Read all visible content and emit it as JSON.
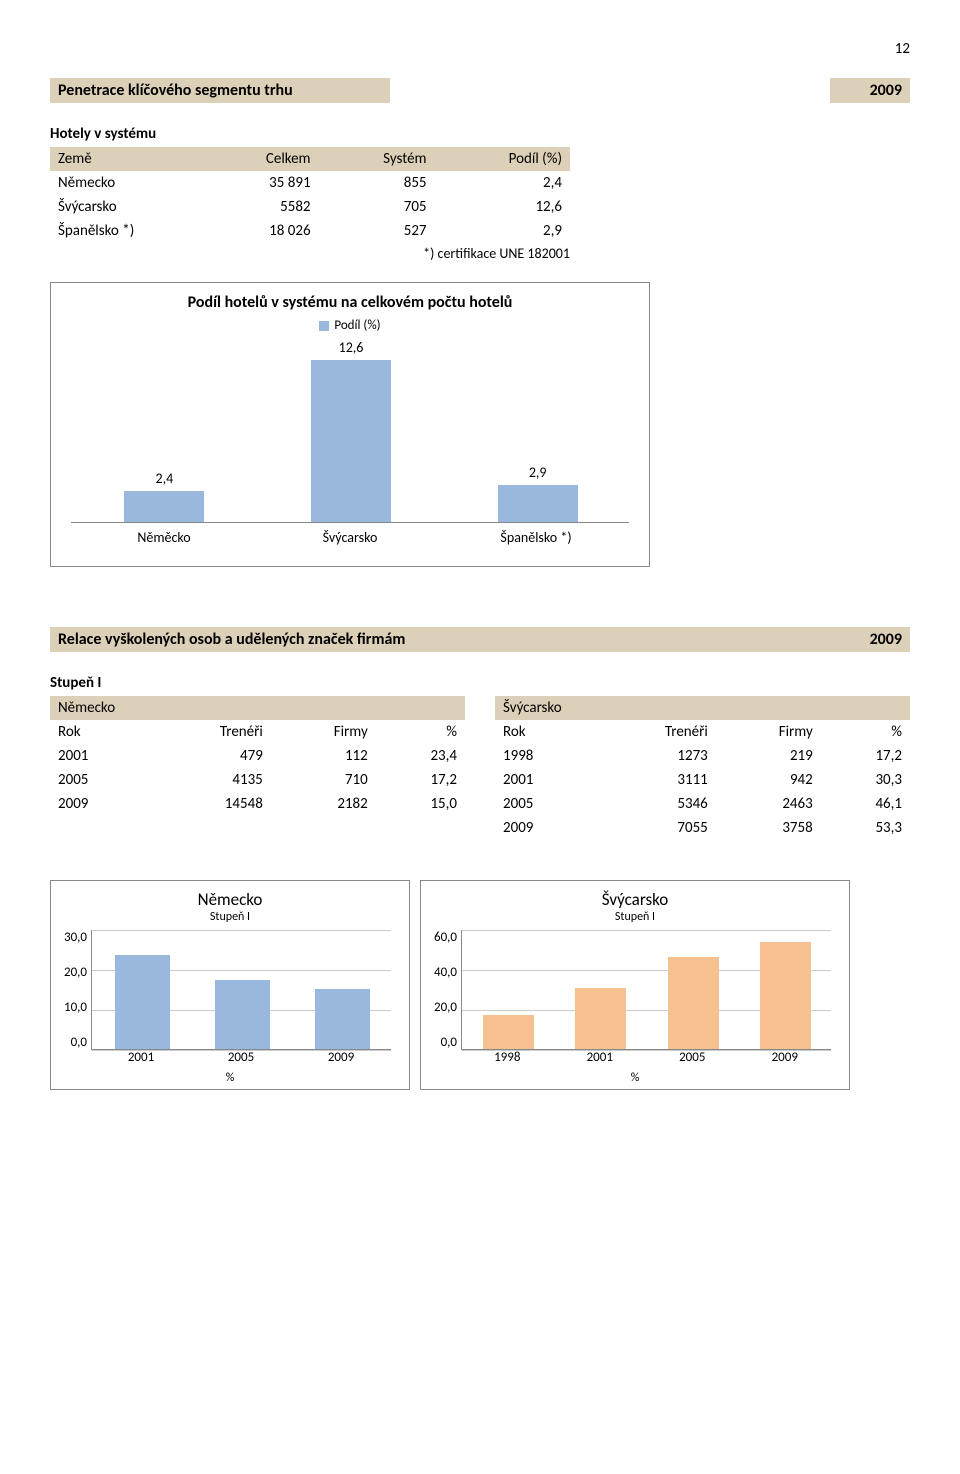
{
  "page_number": "12",
  "section1": {
    "title": "Penetrace klíčového segmentu trhu",
    "year": "2009",
    "subhead": "Hotely v systému",
    "columns": [
      "Země",
      "Celkem",
      "Systém",
      "Podíl (%)"
    ],
    "rows": [
      {
        "c0": "Německo",
        "c1": "35 891",
        "c2": "855",
        "c3": "2,4"
      },
      {
        "c0": "Švýcarsko",
        "c1": "5582",
        "c2": "705",
        "c3": "12,6"
      },
      {
        "c0": "Španělsko *)",
        "c1": "18 026",
        "c2": "527",
        "c3": "2,9"
      }
    ],
    "footnote": "*) certifikace UNE 182001"
  },
  "chart1": {
    "type": "bar",
    "title": "Podíl hotelů v systému na celkovém počtu hotelů",
    "legend_label": "Podíl (%)",
    "categories": [
      "Něměcko",
      "Švýcarsko",
      "Španělsko *)"
    ],
    "values": [
      2.4,
      12.6,
      2.9
    ],
    "value_labels": [
      "2,4",
      "12,6",
      "2,9"
    ],
    "bar_color": "#9ab7dd",
    "axis_color": "#888888",
    "max": 14
  },
  "section2": {
    "title": "Relace vyškolených osob a udělených značek firmám",
    "year": "2009",
    "subhead": "Stupeň I"
  },
  "table_left": {
    "name": "Německo",
    "columns": [
      "Rok",
      "Trenéři",
      "Firmy",
      "%"
    ],
    "rows": [
      {
        "c0": "2001",
        "c1": "479",
        "c2": "112",
        "c3": "23,4"
      },
      {
        "c0": "2005",
        "c1": "4135",
        "c2": "710",
        "c3": "17,2"
      },
      {
        "c0": "2009",
        "c1": "14548",
        "c2": "2182",
        "c3": "15,0"
      }
    ]
  },
  "table_right": {
    "name": "Švýcarsko",
    "columns": [
      "Rok",
      "Trenéři",
      "Firmy",
      "%"
    ],
    "rows": [
      {
        "c0": "1998",
        "c1": "1273",
        "c2": "219",
        "c3": "17,2"
      },
      {
        "c0": "2001",
        "c1": "3111",
        "c2": "942",
        "c3": "30,3"
      },
      {
        "c0": "2005",
        "c1": "5346",
        "c2": "2463",
        "c3": "46,1"
      },
      {
        "c0": "2009",
        "c1": "7055",
        "c2": "3758",
        "c3": "53,3"
      }
    ]
  },
  "chart_left": {
    "type": "bar",
    "title": "Německo",
    "sub": "Stupeň I",
    "categories": [
      "2001",
      "2005",
      "2009"
    ],
    "values": [
      23.4,
      17.2,
      15.0
    ],
    "y_ticks": [
      "30,0",
      "20,0",
      "10,0",
      "0,0"
    ],
    "ymax": 30,
    "bar_color": "#9ab7dd",
    "legend": "%"
  },
  "chart_right": {
    "type": "bar",
    "title": "Švýcarsko",
    "sub": "Stupeň I",
    "categories": [
      "1998",
      "2001",
      "2005",
      "2009"
    ],
    "values": [
      17.2,
      30.3,
      46.1,
      53.3
    ],
    "y_ticks": [
      "60,0",
      "40,0",
      "20,0",
      "0,0"
    ],
    "ymax": 60,
    "bar_color": "#f7c090",
    "legend": "%"
  },
  "colors": {
    "header_bg": "#ddd0b8",
    "blue": "#9ab7dd",
    "orange": "#f7c090"
  }
}
